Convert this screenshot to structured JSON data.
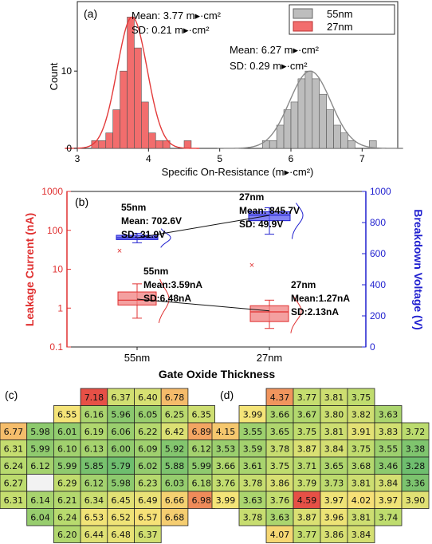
{
  "chart_data": [
    {
      "id": "a",
      "type": "histogram",
      "panel_label": "(a)",
      "xlabel": "Specific On-Resistance (m▸·cm²)",
      "ylabel": "Count",
      "xlim": [
        3,
        7.5
      ],
      "ylim": [
        0,
        19
      ],
      "xticks": [
        "3",
        "4",
        "5",
        "6",
        "7"
      ],
      "yticks": [
        "0",
        "10"
      ],
      "legend": {
        "placement": "top-right",
        "items": [
          {
            "name": "55nm",
            "color": "#bdbdbd"
          },
          {
            "name": "27nm",
            "color": "#f26d6d"
          }
        ]
      },
      "annotations": [
        {
          "line1": "Mean: 3.77 m▸·cm²",
          "line2": "SD: 0.21 m▸·cm²"
        },
        {
          "line1": "Mean: 6.27 m▸·cm²",
          "line2": "SD: 0.29 m▸·cm²"
        }
      ],
      "bin_width": 0.1,
      "series": [
        {
          "name": "27nm",
          "color": "#f26d6d",
          "curve": "#e33b3b",
          "mean": 3.77,
          "sd": 0.21,
          "fit_peak": 17,
          "bin_starts": [
            3.2,
            3.3,
            3.4,
            3.5,
            3.6,
            3.7,
            3.8,
            3.9,
            4.0,
            4.1,
            4.2,
            4.5
          ],
          "counts": [
            1,
            1,
            2,
            5,
            10,
            17,
            13,
            6,
            2,
            1,
            1,
            1
          ]
        },
        {
          "name": "55nm",
          "color": "#bdbdbd",
          "curve": "#8a8a8a",
          "mean": 6.27,
          "sd": 0.29,
          "fit_peak": 10,
          "bin_starts": [
            5.6,
            5.7,
            5.8,
            5.9,
            6.0,
            6.1,
            6.2,
            6.3,
            6.4,
            6.5,
            6.6,
            6.7,
            6.8,
            7.1
          ],
          "counts": [
            1,
            1,
            3,
            5,
            6,
            9,
            10,
            9,
            7,
            5,
            3,
            2,
            1,
            1
          ]
        }
      ]
    },
    {
      "id": "b",
      "type": "box",
      "panel_label": "(b)",
      "xlabel": "Gate Oxide Thickness",
      "categories": [
        "55nm",
        "27nm"
      ],
      "y_left": {
        "label": "Leakage Current (nA)",
        "scale": "log",
        "range": [
          0.1,
          1000
        ],
        "ticks": [
          "0.1",
          "1",
          "10",
          "100",
          "1000"
        ],
        "color": "#e03131"
      },
      "y_right": {
        "label": "Breakdown Voltage (V)",
        "range": [
          0,
          1000
        ],
        "ticks": [
          "0",
          "200",
          "400",
          "600",
          "800",
          "1000"
        ],
        "color": "#1f1fcf"
      },
      "series": [
        {
          "name": "Leakage Current",
          "axis": "left",
          "color": "#f08080",
          "boxes": [
            {
              "category": "55nm",
              "q1": 1.2,
              "median": 1.6,
              "q3": 2.6,
              "mean": 1.7,
              "whisker_low": 0.55,
              "whisker_high": 4.2,
              "outlier": 30
            },
            {
              "category": "27nm",
              "q1": 0.45,
              "median": 0.8,
              "q3": 1.15,
              "mean": 0.85,
              "whisker_low": 0.3,
              "whisker_high": 1.6,
              "outlier": 13
            }
          ],
          "labels": [
            {
              "l1": "55nm",
              "l2": "Mean:3.59nA",
              "l3": "SD:6.48nA"
            },
            {
              "l1": "27nm",
              "l2": "Mean:1.27nA",
              "l3": "SD:2.13nA"
            }
          ]
        },
        {
          "name": "Breakdown Voltage",
          "axis": "right",
          "color": "#5a5af0",
          "boxes": [
            {
              "category": "55nm",
              "q1": 690,
              "median": 702,
              "q3": 718,
              "mean": 702,
              "whisker_low": 670,
              "whisker_high": 730
            },
            {
              "category": "27nm",
              "q1": 812,
              "median": 848,
              "q3": 870,
              "mean": 846,
              "whisker_low": 725,
              "whisker_high": 895
            }
          ],
          "labels": [
            {
              "l1": "55nm",
              "l2": "Mean: 702.6V",
              "l3": "SD: 31.9V"
            },
            {
              "l1": "27nm",
              "l2": "Mean: 845.7V",
              "l3": "SD: 49.9V"
            }
          ]
        }
      ]
    },
    {
      "id": "c",
      "type": "heatmap",
      "panel_label": "(c)",
      "color_min": 5.79,
      "color_max": 7.18,
      "rows": [
        [
          null,
          null,
          null,
          7.18,
          6.37,
          6.4,
          6.78,
          null,
          null,
          null
        ],
        [
          null,
          null,
          6.55,
          6.16,
          5.96,
          6.05,
          6.25,
          6.35,
          null,
          null
        ],
        [
          6.77,
          5.98,
          6.01,
          6.19,
          6.06,
          6.22,
          6.42,
          6.89
        ],
        [
          6.31,
          5.99,
          6.1,
          6.13,
          6.0,
          6.09,
          5.92,
          6.12
        ],
        [
          6.24,
          6.12,
          5.99,
          5.85,
          5.79,
          6.02,
          5.88,
          5.99
        ],
        [
          6.27,
          "blank",
          6.29,
          6.12,
          5.98,
          6.23,
          6.03,
          6.18
        ],
        [
          6.31,
          6.14,
          6.21,
          6.34,
          6.45,
          6.49,
          6.66,
          6.98
        ],
        [
          null,
          6.04,
          6.24,
          6.53,
          6.52,
          6.57,
          6.68,
          null
        ],
        [
          null,
          null,
          6.2,
          6.44,
          6.48,
          6.37,
          null,
          null
        ]
      ]
    },
    {
      "id": "d",
      "type": "heatmap",
      "panel_label": "(d)",
      "color_min": 3.28,
      "color_max": 4.59,
      "rows": [
        [
          null,
          null,
          4.37,
          3.77,
          3.81,
          3.75,
          null,
          null
        ],
        [
          null,
          3.99,
          3.66,
          3.67,
          3.8,
          3.82,
          3.63,
          null
        ],
        [
          4.15,
          3.55,
          3.65,
          3.75,
          3.81,
          3.91,
          3.83,
          3.72
        ],
        [
          3.53,
          3.59,
          3.78,
          3.87,
          3.84,
          3.75,
          3.55,
          3.38
        ],
        [
          3.66,
          3.61,
          3.75,
          3.71,
          3.65,
          3.68,
          3.46,
          3.28
        ],
        [
          3.76,
          3.78,
          3.86,
          3.79,
          3.73,
          3.81,
          3.84,
          3.36
        ],
        [
          3.99,
          3.63,
          3.76,
          4.59,
          3.97,
          4.02,
          3.97,
          3.9
        ],
        [
          null,
          3.78,
          3.63,
          3.87,
          3.96,
          3.81,
          3.74,
          null
        ],
        [
          null,
          null,
          4.07,
          3.77,
          3.86,
          3.84,
          null,
          null
        ]
      ]
    }
  ]
}
